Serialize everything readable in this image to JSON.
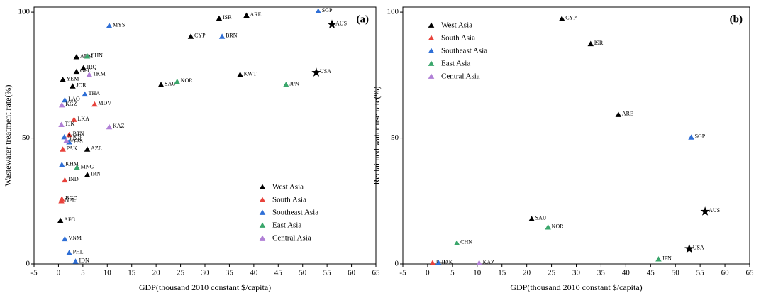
{
  "chart_data": [
    {
      "type": "scatter",
      "panel_label": "(a)",
      "x_label": "GDP(thousand 2010 constant $/capita)",
      "y_label": "Wastewater treatment rate(%)",
      "xlim": [
        -5,
        65
      ],
      "xticks": [
        -5,
        0,
        5,
        10,
        15,
        20,
        25,
        30,
        35,
        40,
        45,
        50,
        55,
        60,
        65
      ],
      "ylim": [
        0,
        102
      ],
      "yticks": [
        0,
        50,
        100
      ],
      "legend": "lower right",
      "series": [
        {
          "name": "West Asia",
          "color": "#000000",
          "marker": "triangle",
          "labels": [
            "ARE",
            "ISR",
            "CYP",
            "KWT",
            "SAU",
            "ARM",
            "IRQ",
            "GEO",
            "YEM",
            "JOR",
            "AZE",
            "IRN",
            "AFG"
          ],
          "x": [
            38.5,
            32.9,
            27.1,
            37.2,
            21.0,
            3.7,
            5.1,
            3.7,
            0.9,
            2.9,
            5.9,
            5.9,
            0.4
          ],
          "values": [
            98.6,
            97.4,
            90.2,
            75.1,
            71.1,
            82.1,
            77.7,
            76.3,
            73.1,
            70.5,
            45.4,
            35.3,
            17.1
          ]
        },
        {
          "name": "South Asia",
          "color": "#e8423b",
          "marker": "triangle",
          "labels": [
            "LKA",
            "BTN",
            "MDV",
            "PAK",
            "IND",
            "BGD",
            "NPL"
          ],
          "x": [
            3.2,
            2.2,
            7.4,
            0.9,
            1.3,
            0.7,
            0.6
          ],
          "values": [
            57.2,
            51.2,
            63.3,
            45.4,
            33.2,
            25.7,
            24.9
          ]
        },
        {
          "name": "Southeast Asia",
          "color": "#2f6fd6",
          "marker": "triangle",
          "labels": [
            "MYS",
            "SGP",
            "BRN",
            "THA",
            "LAO",
            "MMR",
            "TLS",
            "KHM",
            "VNM",
            "PHL",
            "IDN"
          ],
          "x": [
            10.4,
            53.2,
            33.5,
            5.4,
            1.3,
            1.2,
            2.2,
            0.7,
            1.3,
            2.2,
            3.5
          ],
          "values": [
            94.5,
            100.3,
            90.2,
            67.3,
            65.0,
            50.3,
            48.3,
            39.3,
            9.8,
            4.3,
            0.9
          ]
        },
        {
          "name": "East Asia",
          "color": "#3aa66b",
          "marker": "triangle",
          "labels": [
            "CHN",
            "KOR",
            "JPN",
            "MNG"
          ],
          "x": [
            5.9,
            24.3,
            46.6,
            3.8
          ],
          "values": [
            82.4,
            72.3,
            71.1,
            38.2
          ]
        },
        {
          "name": "Central Asia",
          "color": "#b07fd6",
          "marker": "triangle",
          "labels": [
            "TKM",
            "KGZ",
            "TJK",
            "KAZ",
            "UZB"
          ],
          "x": [
            6.3,
            0.7,
            0.6,
            10.4,
            1.6
          ],
          "values": [
            75.1,
            63.0,
            55.2,
            54.3,
            48.8
          ]
        },
        {
          "color": "#000000",
          "marker": "star",
          "labels": [
            "AUS",
            "USA"
          ],
          "x": [
            56.0,
            52.8
          ],
          "values": [
            95.1,
            76.0
          ]
        }
      ]
    },
    {
      "type": "scatter",
      "panel_label": "(b)",
      "x_label": "GDP(thousand 2010 constant $/capita)",
      "y_label": "Reclaimed water use rate(%)",
      "xlim": [
        -5,
        65
      ],
      "xticks": [
        -5,
        0,
        5,
        10,
        15,
        20,
        25,
        30,
        35,
        40,
        45,
        50,
        55,
        60,
        65
      ],
      "ylim": [
        0,
        102
      ],
      "yticks": [
        0,
        50,
        100
      ],
      "legend": "upper left",
      "series": [
        {
          "name": "West Asia",
          "color": "#000000",
          "marker": "triangle",
          "labels": [
            "CYP",
            "ISR",
            "ARE",
            "SAU"
          ],
          "x": [
            27.1,
            32.9,
            38.5,
            21.0
          ],
          "values": [
            97.3,
            87.3,
            59.2,
            17.8
          ]
        },
        {
          "name": "South Asia",
          "color": "#e8423b",
          "marker": "triangle",
          "labels": [
            "PHL"
          ],
          "x": [
            1.0
          ],
          "values": [
            0.3
          ]
        },
        {
          "name": "Southeast Asia",
          "color": "#2f6fd6",
          "marker": "triangle",
          "labels": [
            "SGP",
            "PAK"
          ],
          "x": [
            53.2,
            2.2
          ],
          "values": [
            50.2,
            0.3
          ]
        },
        {
          "name": "East Asia",
          "color": "#3aa66b",
          "marker": "triangle",
          "labels": [
            "CHN",
            "KOR",
            "JPN"
          ],
          "x": [
            5.9,
            24.3,
            46.6
          ],
          "values": [
            8.2,
            14.5,
            1.8
          ]
        },
        {
          "name": "Central Asia",
          "color": "#b07fd6",
          "marker": "triangle",
          "labels": [
            "KAZ"
          ],
          "x": [
            10.4
          ],
          "values": [
            0.3
          ]
        },
        {
          "color": "#000000",
          "marker": "star",
          "labels": [
            "AUS",
            "USA"
          ],
          "x": [
            56.0,
            52.8
          ],
          "values": [
            20.8,
            6.0
          ]
        }
      ]
    }
  ]
}
